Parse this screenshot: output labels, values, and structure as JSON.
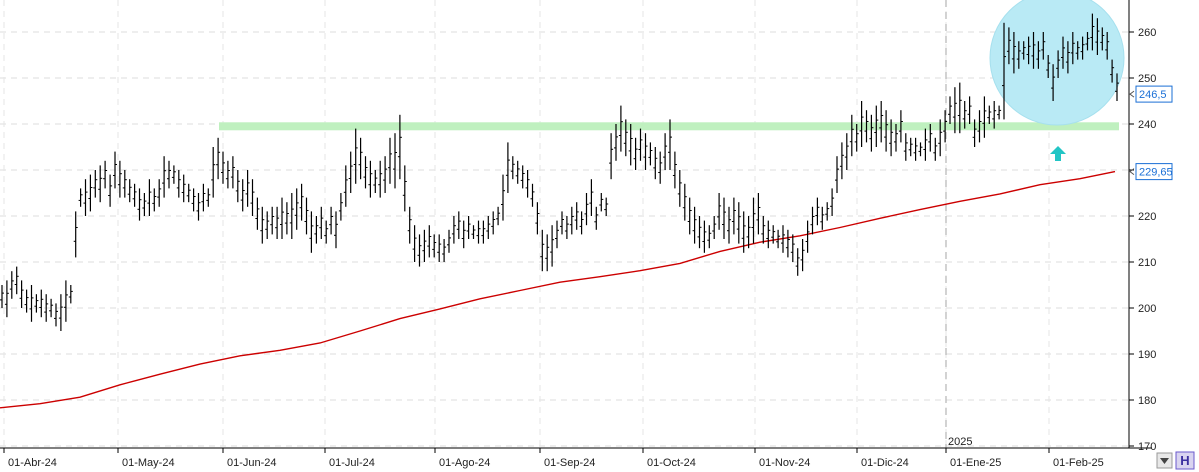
{
  "chart_data": {
    "type": "ohlc",
    "ylim": [
      170,
      265
    ],
    "y_ticks": [
      170,
      180,
      190,
      200,
      210,
      220,
      230,
      240,
      250,
      260
    ],
    "x_ticks": [
      "01-Abr-24",
      "01-May-24",
      "01-Jun-24",
      "01-Jul-24",
      "01-Ago-24",
      "01-Sep-24",
      "01-Oct-24",
      "01-Nov-24",
      "01-Dic-24",
      "01-Ene-25",
      "01-Feb-25"
    ],
    "year_marker": "2025",
    "last_price_label": "246,5",
    "moving_average_label": "229,65",
    "grid": true,
    "price_series": [
      [
        200,
        205
      ],
      [
        198,
        206
      ],
      [
        202,
        208
      ],
      [
        203,
        209
      ],
      [
        200,
        206
      ],
      [
        199,
        204
      ],
      [
        197,
        205
      ],
      [
        199,
        203
      ],
      [
        198,
        204
      ],
      [
        197,
        203
      ],
      [
        198,
        202
      ],
      [
        196,
        201
      ],
      [
        195,
        203
      ],
      [
        197,
        206
      ],
      [
        201,
        205
      ],
      [
        211,
        221
      ],
      [
        222,
        226
      ],
      [
        220,
        228
      ],
      [
        221,
        229
      ],
      [
        224,
        230
      ],
      [
        223,
        231
      ],
      [
        226,
        232
      ],
      [
        222,
        229
      ],
      [
        226,
        234
      ],
      [
        224,
        232
      ],
      [
        224,
        230
      ],
      [
        223,
        228
      ],
      [
        222,
        227
      ],
      [
        219,
        226
      ],
      [
        220,
        225
      ],
      [
        220,
        228
      ],
      [
        221,
        226
      ],
      [
        222,
        228
      ],
      [
        224,
        233
      ],
      [
        226,
        232
      ],
      [
        227,
        231
      ],
      [
        224,
        230
      ],
      [
        223,
        229
      ],
      [
        223,
        227
      ],
      [
        221,
        226
      ],
      [
        219,
        225
      ],
      [
        221,
        227
      ],
      [
        222,
        226
      ],
      [
        224,
        235
      ],
      [
        228,
        237
      ],
      [
        227,
        234
      ],
      [
        226,
        232
      ],
      [
        226,
        233
      ],
      [
        223,
        230
      ],
      [
        221,
        228
      ],
      [
        222,
        230
      ],
      [
        220,
        228
      ],
      [
        217,
        224
      ],
      [
        214,
        222
      ],
      [
        215,
        221
      ],
      [
        216,
        222
      ],
      [
        215,
        222
      ],
      [
        215,
        224
      ],
      [
        216,
        223
      ],
      [
        215,
        225
      ],
      [
        217,
        226
      ],
      [
        219,
        227
      ],
      [
        216,
        224
      ],
      [
        212,
        221
      ],
      [
        214,
        220
      ],
      [
        215,
        222
      ],
      [
        214,
        219
      ],
      [
        216,
        222
      ],
      [
        213,
        221
      ],
      [
        219,
        225
      ],
      [
        222,
        231
      ],
      [
        225,
        234
      ],
      [
        227,
        239
      ],
      [
        228,
        237
      ],
      [
        226,
        233
      ],
      [
        224,
        232
      ],
      [
        225,
        230
      ],
      [
        224,
        232
      ],
      [
        225,
        233
      ],
      [
        227,
        237
      ],
      [
        226,
        238
      ],
      [
        228,
        242
      ],
      [
        221,
        231
      ],
      [
        214,
        222
      ],
      [
        210,
        218
      ],
      [
        209,
        216
      ],
      [
        210,
        217
      ],
      [
        211,
        218
      ],
      [
        211,
        216
      ],
      [
        210,
        216
      ],
      [
        210,
        215
      ],
      [
        212,
        217
      ],
      [
        214,
        220
      ],
      [
        215,
        221
      ],
      [
        213,
        219
      ],
      [
        215,
        220
      ],
      [
        215,
        218
      ],
      [
        214,
        219
      ],
      [
        214,
        219
      ],
      [
        215,
        220
      ],
      [
        216,
        221
      ],
      [
        218,
        222
      ],
      [
        219,
        229
      ],
      [
        225,
        236
      ],
      [
        228,
        233
      ],
      [
        227,
        232
      ],
      [
        226,
        231
      ],
      [
        224,
        230
      ],
      [
        222,
        227
      ],
      [
        216,
        223
      ],
      [
        208,
        217
      ],
      [
        208,
        216
      ],
      [
        209,
        218
      ],
      [
        213,
        219
      ],
      [
        216,
        221
      ],
      [
        215,
        220
      ],
      [
        216,
        222
      ],
      [
        217,
        223
      ],
      [
        216,
        221
      ],
      [
        218,
        225
      ],
      [
        220,
        228
      ],
      [
        217,
        222
      ],
      [
        221,
        225
      ],
      [
        220,
        224
      ],
      [
        228,
        238
      ],
      [
        232,
        240
      ],
      [
        234,
        244
      ],
      [
        233,
        241
      ],
      [
        231,
        240
      ],
      [
        230,
        237
      ],
      [
        232,
        239
      ],
      [
        230,
        238
      ],
      [
        231,
        236
      ],
      [
        228,
        235
      ],
      [
        227,
        234
      ],
      [
        230,
        238
      ],
      [
        230,
        241
      ],
      [
        226,
        234
      ],
      [
        222,
        230
      ],
      [
        219,
        227
      ],
      [
        216,
        224
      ],
      [
        214,
        222
      ],
      [
        213,
        220
      ],
      [
        212,
        219
      ],
      [
        213,
        218
      ],
      [
        215,
        220
      ],
      [
        217,
        225
      ],
      [
        215,
        224
      ],
      [
        214,
        222
      ],
      [
        216,
        224
      ],
      [
        214,
        223
      ],
      [
        212,
        221
      ],
      [
        213,
        220
      ],
      [
        214,
        224
      ],
      [
        216,
        225
      ],
      [
        214,
        220
      ],
      [
        213,
        219
      ],
      [
        214,
        218
      ],
      [
        213,
        217
      ],
      [
        212,
        218
      ],
      [
        211,
        217
      ],
      [
        210,
        216
      ],
      [
        207,
        213
      ],
      [
        208,
        215
      ],
      [
        212,
        219
      ],
      [
        216,
        222
      ],
      [
        218,
        224
      ],
      [
        217,
        222
      ],
      [
        219,
        223
      ],
      [
        220,
        226
      ],
      [
        225,
        233
      ],
      [
        228,
        236
      ],
      [
        230,
        238
      ],
      [
        233,
        242
      ],
      [
        234,
        240
      ],
      [
        235,
        245
      ],
      [
        236,
        243
      ],
      [
        234,
        242
      ],
      [
        235,
        244
      ],
      [
        236,
        245
      ],
      [
        234,
        243
      ],
      [
        233,
        241
      ],
      [
        234,
        240
      ],
      [
        236,
        243
      ],
      [
        232,
        238
      ],
      [
        233,
        237
      ],
      [
        232,
        237
      ],
      [
        233,
        236
      ],
      [
        232,
        239
      ],
      [
        234,
        240
      ],
      [
        232,
        237
      ],
      [
        233,
        241
      ],
      [
        236,
        243
      ],
      [
        240,
        246
      ],
      [
        238,
        248
      ],
      [
        238,
        249
      ],
      [
        239,
        245
      ],
      [
        240,
        246
      ],
      [
        235,
        241
      ],
      [
        236,
        243
      ],
      [
        237,
        246
      ],
      [
        240,
        244
      ],
      [
        239,
        245
      ],
      [
        241,
        244
      ],
      [
        241,
        262
      ],
      [
        253,
        261
      ],
      [
        251,
        260
      ],
      [
        252,
        258
      ],
      [
        254,
        258
      ],
      [
        253,
        259
      ],
      [
        252,
        260
      ],
      [
        252,
        258
      ],
      [
        254,
        260
      ],
      [
        250,
        255
      ],
      [
        245,
        253
      ],
      [
        250,
        256
      ],
      [
        252,
        259
      ],
      [
        251,
        258
      ],
      [
        253,
        260
      ],
      [
        254,
        258
      ],
      [
        254,
        259
      ],
      [
        256,
        260
      ],
      [
        256,
        264
      ],
      [
        255,
        263
      ],
      [
        256,
        261
      ],
      [
        254,
        260
      ],
      [
        249,
        254
      ],
      [
        245,
        251
      ]
    ],
    "moving_average": [
      [
        0,
        178.3
      ],
      [
        40,
        179.2
      ],
      [
        80,
        180.6
      ],
      [
        120,
        183.3
      ],
      [
        160,
        185.6
      ],
      [
        200,
        187.8
      ],
      [
        240,
        189.6
      ],
      [
        280,
        190.8
      ],
      [
        320,
        192.4
      ],
      [
        360,
        195.0
      ],
      [
        400,
        197.7
      ],
      [
        440,
        199.8
      ],
      [
        480,
        202.0
      ],
      [
        520,
        203.8
      ],
      [
        560,
        205.6
      ],
      [
        600,
        206.8
      ],
      [
        640,
        208.1
      ],
      [
        680,
        209.7
      ],
      [
        720,
        212.3
      ],
      [
        760,
        214.3
      ],
      [
        800,
        215.7
      ],
      [
        840,
        217.5
      ],
      [
        880,
        219.5
      ],
      [
        920,
        221.4
      ],
      [
        960,
        223.2
      ],
      [
        1000,
        224.8
      ],
      [
        1040,
        226.8
      ],
      [
        1080,
        228.1
      ],
      [
        1115,
        229.65
      ]
    ],
    "support_level": 239.5
  }
}
